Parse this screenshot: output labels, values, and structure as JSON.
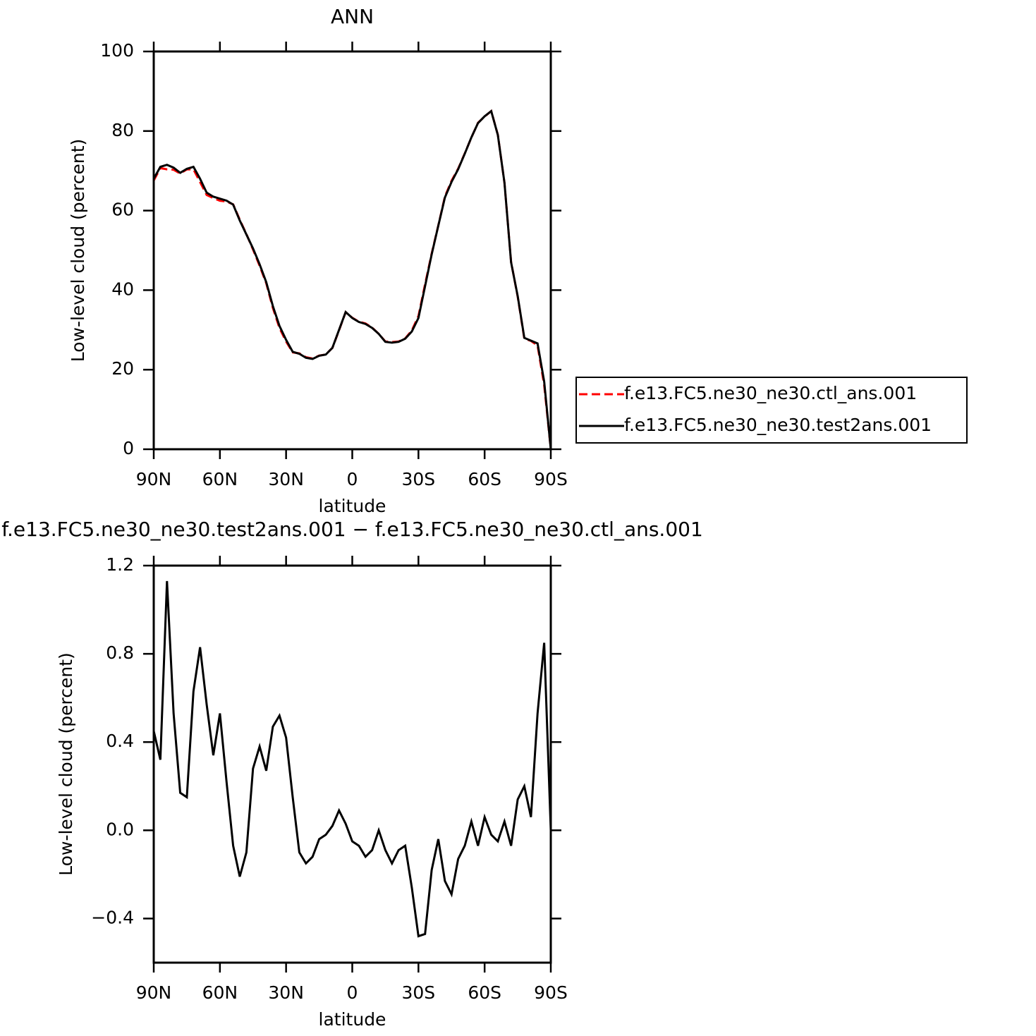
{
  "chart_data": [
    {
      "type": "line",
      "title": "ANN",
      "xlabel": "latitude",
      "ylabel": "Low-level cloud (percent)",
      "x": [
        90,
        87,
        84,
        81,
        78,
        75,
        72,
        69,
        66,
        63,
        60,
        57,
        54,
        51,
        48,
        45,
        42,
        39,
        36,
        33,
        30,
        27,
        24,
        21,
        18,
        15,
        12,
        9,
        6,
        3,
        0,
        -3,
        -6,
        -9,
        -12,
        -15,
        -18,
        -21,
        -24,
        -27,
        -30,
        -33,
        -36,
        -39,
        -42,
        -45,
        -48,
        -51,
        -54,
        -57,
        -60,
        -63,
        -66,
        -69,
        -72,
        -75,
        -78,
        -81,
        -84,
        -87,
        -90
      ],
      "series": [
        {
          "name": "f.e13.FC5.ne30_ne30.ctl_ans.001",
          "color": "#ff0000",
          "dashed": true,
          "values": [
            67.55,
            70.68,
            70.37,
            70.27,
            69.33,
            70.35,
            70.37,
            67.17,
            63.93,
            63.16,
            62.47,
            62.28,
            61.57,
            57.71,
            54.1,
            50.22,
            46.12,
            41.73,
            35.53,
            30.48,
            27.08,
            24.35,
            24.1,
            23.15,
            22.82,
            23.54,
            23.82,
            25.48,
            29.91,
            34.47,
            33.05,
            32.07,
            31.62,
            30.59,
            29,
            27.09,
            26.95,
            27.09,
            27.87,
            29.86,
            33.48,
            41.47,
            49.18,
            56.24,
            63.53,
            67.49,
            70.53,
            74.37,
            78.36,
            82.07,
            83.64,
            85.02,
            79.05,
            66.96,
            47.07,
            38.36,
            27.8,
            27.24,
            26.07,
            16.15,
            0
          ]
        },
        {
          "name": "f.e13.FC5.ne30_ne30.test2ans.001",
          "color": "#000000",
          "dashed": false,
          "values": [
            68,
            71,
            71.5,
            70.8,
            69.5,
            70.5,
            71,
            68,
            64.5,
            63.5,
            63,
            62.5,
            61.5,
            57.5,
            54,
            50.5,
            46.5,
            42,
            36,
            31,
            27.5,
            24.5,
            24,
            23,
            22.7,
            23.5,
            23.8,
            25.5,
            30,
            34.5,
            33,
            32,
            31.5,
            30.5,
            29,
            27,
            26.8,
            27,
            27.8,
            29.6,
            33,
            41,
            49,
            56.2,
            63.3,
            67.2,
            70.4,
            74.3,
            78.4,
            82,
            83.7,
            85,
            79,
            67,
            47,
            38.5,
            28,
            27.3,
            26.6,
            17,
            0
          ]
        }
      ],
      "xlim": [
        90,
        -90
      ],
      "xticks": [
        {
          "value": 90,
          "label": "90N"
        },
        {
          "value": 60,
          "label": "60N"
        },
        {
          "value": 30,
          "label": "30N"
        },
        0,
        {
          "value": -30,
          "label": "30S"
        },
        {
          "value": -60,
          "label": "60S"
        },
        {
          "value": -90,
          "label": "90S"
        }
      ],
      "ylim": [
        0,
        100
      ],
      "yticks": [
        0,
        20,
        40,
        60,
        80,
        100
      ],
      "legend": "right"
    },
    {
      "type": "line",
      "title": "f.e13.FC5.ne30_ne30.test2ans.001 − f.e13.FC5.ne30_ne30.ctl_ans.001",
      "xlabel": "latitude",
      "ylabel": "Low-level cloud (percent)",
      "x": [
        90,
        87,
        84,
        81,
        78,
        75,
        72,
        69,
        66,
        63,
        60,
        57,
        54,
        51,
        48,
        45,
        42,
        39,
        36,
        33,
        30,
        27,
        24,
        21,
        18,
        15,
        12,
        9,
        6,
        3,
        0,
        -3,
        -6,
        -9,
        -12,
        -15,
        -18,
        -21,
        -24,
        -27,
        -30,
        -33,
        -36,
        -39,
        -42,
        -45,
        -48,
        -51,
        -54,
        -57,
        -60,
        -63,
        -66,
        -69,
        -72,
        -75,
        -78,
        -81,
        -84,
        -87,
        -90
      ],
      "series": [
        {
          "color": "#000000",
          "dashed": false,
          "values": [
            0.45,
            0.32,
            1.13,
            0.53,
            0.17,
            0.15,
            0.63,
            0.83,
            0.57,
            0.34,
            0.53,
            0.22,
            -0.07,
            -0.21,
            -0.1,
            0.28,
            0.38,
            0.27,
            0.47,
            0.52,
            0.42,
            0.15,
            -0.1,
            -0.15,
            -0.12,
            -0.04,
            -0.02,
            0.02,
            0.09,
            0.03,
            -0.05,
            -0.07,
            -0.12,
            -0.09,
            0,
            -0.09,
            -0.15,
            -0.09,
            -0.07,
            -0.26,
            -0.48,
            -0.47,
            -0.18,
            -0.04,
            -0.23,
            -0.29,
            -0.13,
            -0.07,
            0.04,
            -0.07,
            0.06,
            -0.02,
            -0.05,
            0.04,
            -0.07,
            0.14,
            0.2,
            0.06,
            0.53,
            0.85,
            0
          ]
        }
      ],
      "xlim": [
        90,
        -90
      ],
      "xticks": [
        {
          "value": 90,
          "label": "90N"
        },
        {
          "value": 60,
          "label": "60N"
        },
        {
          "value": 30,
          "label": "30N"
        },
        0,
        {
          "value": -30,
          "label": "30S"
        },
        {
          "value": -60,
          "label": "60S"
        },
        {
          "value": -90,
          "label": "90S"
        }
      ],
      "ylim": [
        -0.6,
        1.2
      ],
      "yticks": [
        {
          "value": -0.4,
          "label": "−0.4"
        },
        {
          "value": 0,
          "label": "0.0"
        },
        0.4,
        0.8,
        1.2
      ]
    }
  ]
}
